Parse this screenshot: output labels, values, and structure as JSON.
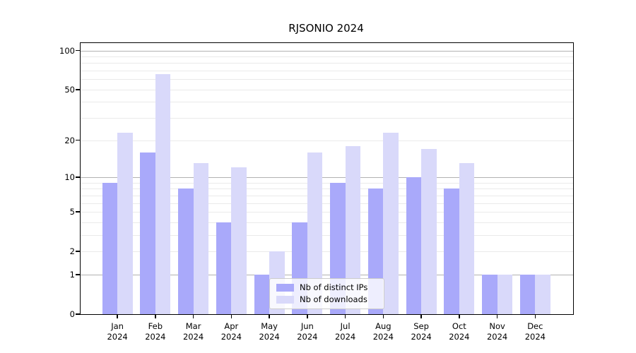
{
  "figure": {
    "title": "RJSONIO 2024"
  },
  "chart_data": {
    "type": "bar",
    "title": "RJSONIO 2024",
    "categories": [
      "Jan",
      "Feb",
      "Mar",
      "Apr",
      "May",
      "Jun",
      "Jul",
      "Aug",
      "Sep",
      "Oct",
      "Nov",
      "Dec"
    ],
    "year_label": "2024",
    "series": [
      {
        "name": "Nb of distinct IPs",
        "color": "#a9a9fa",
        "values": [
          9,
          16,
          8,
          4,
          1,
          4,
          9,
          8,
          10,
          8,
          1,
          1
        ]
      },
      {
        "name": "Nb of downloads",
        "color": "#d9d9fa",
        "values": [
          23,
          66,
          13,
          12,
          2,
          16,
          18,
          23,
          17,
          13,
          1,
          1
        ]
      }
    ],
    "xlabel": "",
    "ylabel": "",
    "yscale": "log1p",
    "ylim": [
      0,
      114
    ],
    "yticks": [
      100,
      50,
      20,
      10,
      5,
      2,
      1,
      0
    ],
    "gridlines": {
      "major": [
        1,
        10,
        100
      ],
      "minor": [
        2,
        3,
        4,
        5,
        6,
        7,
        8,
        9,
        20,
        30,
        40,
        50,
        60,
        70,
        80,
        90
      ]
    },
    "grid": true,
    "legend": {
      "position": "lower-center-left",
      "entries": [
        "Nb of distinct IPs",
        "Nb of downloads"
      ]
    }
  }
}
